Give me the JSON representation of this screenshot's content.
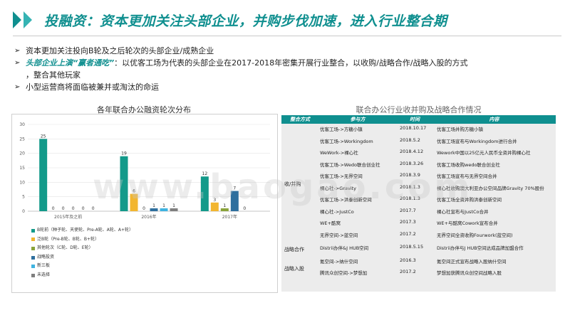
{
  "header": {
    "title": "投融资：资本更加关注头部企业，并购步伐加速，进入行业整合期"
  },
  "bullets": [
    {
      "marker": "➢",
      "text": "资本更加关注投向B轮及之后轮次的头部企业/成熟企业"
    },
    {
      "marker": "➢",
      "highlight": "头部企业上演“赢者通吃”",
      "text": "：以优客工场为代表的头部企业在2017-2018年密集开展行业整合，以收购/战略合作/战略入股的方式",
      "continuation": "，整合其他玩家"
    },
    {
      "marker": "➢",
      "text": "小型运营商将面临被兼并或淘汰的命运"
    }
  ],
  "left_chart": {
    "title": "各年联合办公融资轮次分布"
  },
  "chart_data": {
    "type": "bar",
    "title": "各年联合办公融资轮次分布",
    "categories": [
      "2015年及之前",
      "2016年",
      "2017年"
    ],
    "ylim": [
      0,
      30
    ],
    "yticks": [
      0,
      5,
      10,
      15,
      20,
      25,
      30
    ],
    "grid": true,
    "legend_position": "bottom-left",
    "series": [
      {
        "name": "B轮前（种子轮、天使轮、Pre-A轮、A轮、A+轮）",
        "color": "#139a8a",
        "values": [
          25,
          19,
          12
        ]
      },
      {
        "name": "泛B轮（Pre-B轮、B轮、B+轮）",
        "color": "#f2b630",
        "values": [
          0,
          6,
          3
        ]
      },
      {
        "name": "其他轮次（C轮、D轮、E轮）",
        "color": "#8aa33a",
        "values": [
          0,
          0,
          1
        ]
      },
      {
        "name": "战略投资",
        "color": "#2e6f9e",
        "values": [
          0,
          1,
          7
        ]
      },
      {
        "name": "新三板",
        "color": "#3fb3e0",
        "values": [
          0,
          1,
          0
        ]
      },
      {
        "name": "未选择",
        "color": "#7f7f7f",
        "values": [
          0,
          1,
          0
        ]
      }
    ],
    "data_labels": [
      [
        "25",
        "0",
        "0",
        "0",
        "0",
        "0"
      ],
      [
        "19",
        "6",
        "0",
        "1",
        "1",
        "1"
      ],
      [
        "12",
        "3",
        "1",
        "7",
        "0",
        ""
      ]
    ]
  },
  "table": {
    "title": "联合办公行业收并购及战略合作情况",
    "headers": [
      "整合方式",
      "参与方",
      "时间",
      "内容"
    ],
    "groups": [
      {
        "category": "收/并购",
        "rows": [
          [
            "优客工场->方糖小镇",
            "2018.10.17",
            "优客工场并购方糖小镇"
          ],
          [
            "优客工场->Workingdom",
            "2018.5.2",
            "优客工场宣布与Workingdom进行合并"
          ],
          [
            "WeWork->裸心社",
            "2018.4.12",
            "Wework中国以25亿元人民币全资并购裸心社"
          ],
          [
            "优客工场->Wedo联合创业社",
            "2018.3.26",
            "优客工场收购wedo联合创业社"
          ],
          [
            "优客工场->无界空间",
            "2018.3.9",
            "优客工场宣布与无界空间合并"
          ],
          [
            "裸心社->Gravity",
            "2018.1.3",
            "裸心社收购澳大利亚办公空间品牌Gravity 70%股份"
          ],
          [
            "优客工场->洪泰创新空间",
            "2018.1.3",
            "优客工场全资并购洪泰创新空间"
          ],
          [
            "裸心社->JustCo",
            "2017.7",
            "裸心社宣布与JustCo合并"
          ],
          [
            "WE+酷窝",
            "2017.3",
            "WE+与酷窝Cowork宣布合并"
          ],
          [
            "无界空间->蓝空间",
            "2017.2",
            "无界空间全资收购Fourwork(蓝空间)"
          ]
        ]
      },
      {
        "category": "战略合作",
        "rows": [
          [
            "Distrii办伴&J HUB空间",
            "2018.5.15",
            "Distrii办伴与J HUB空间达成品牌加盟合作"
          ]
        ]
      },
      {
        "category": "战略入股",
        "rows": [
          [
            "氪空间->纳什空间",
            "2016.3",
            "氪空间正式宣布战略入股纳什空间"
          ],
          [
            "腾讯众创空间->梦想加",
            "2017.2",
            "梦想加获腾讯众创空间战略入股"
          ]
        ]
      }
    ]
  },
  "watermark": "www.baogao.com"
}
